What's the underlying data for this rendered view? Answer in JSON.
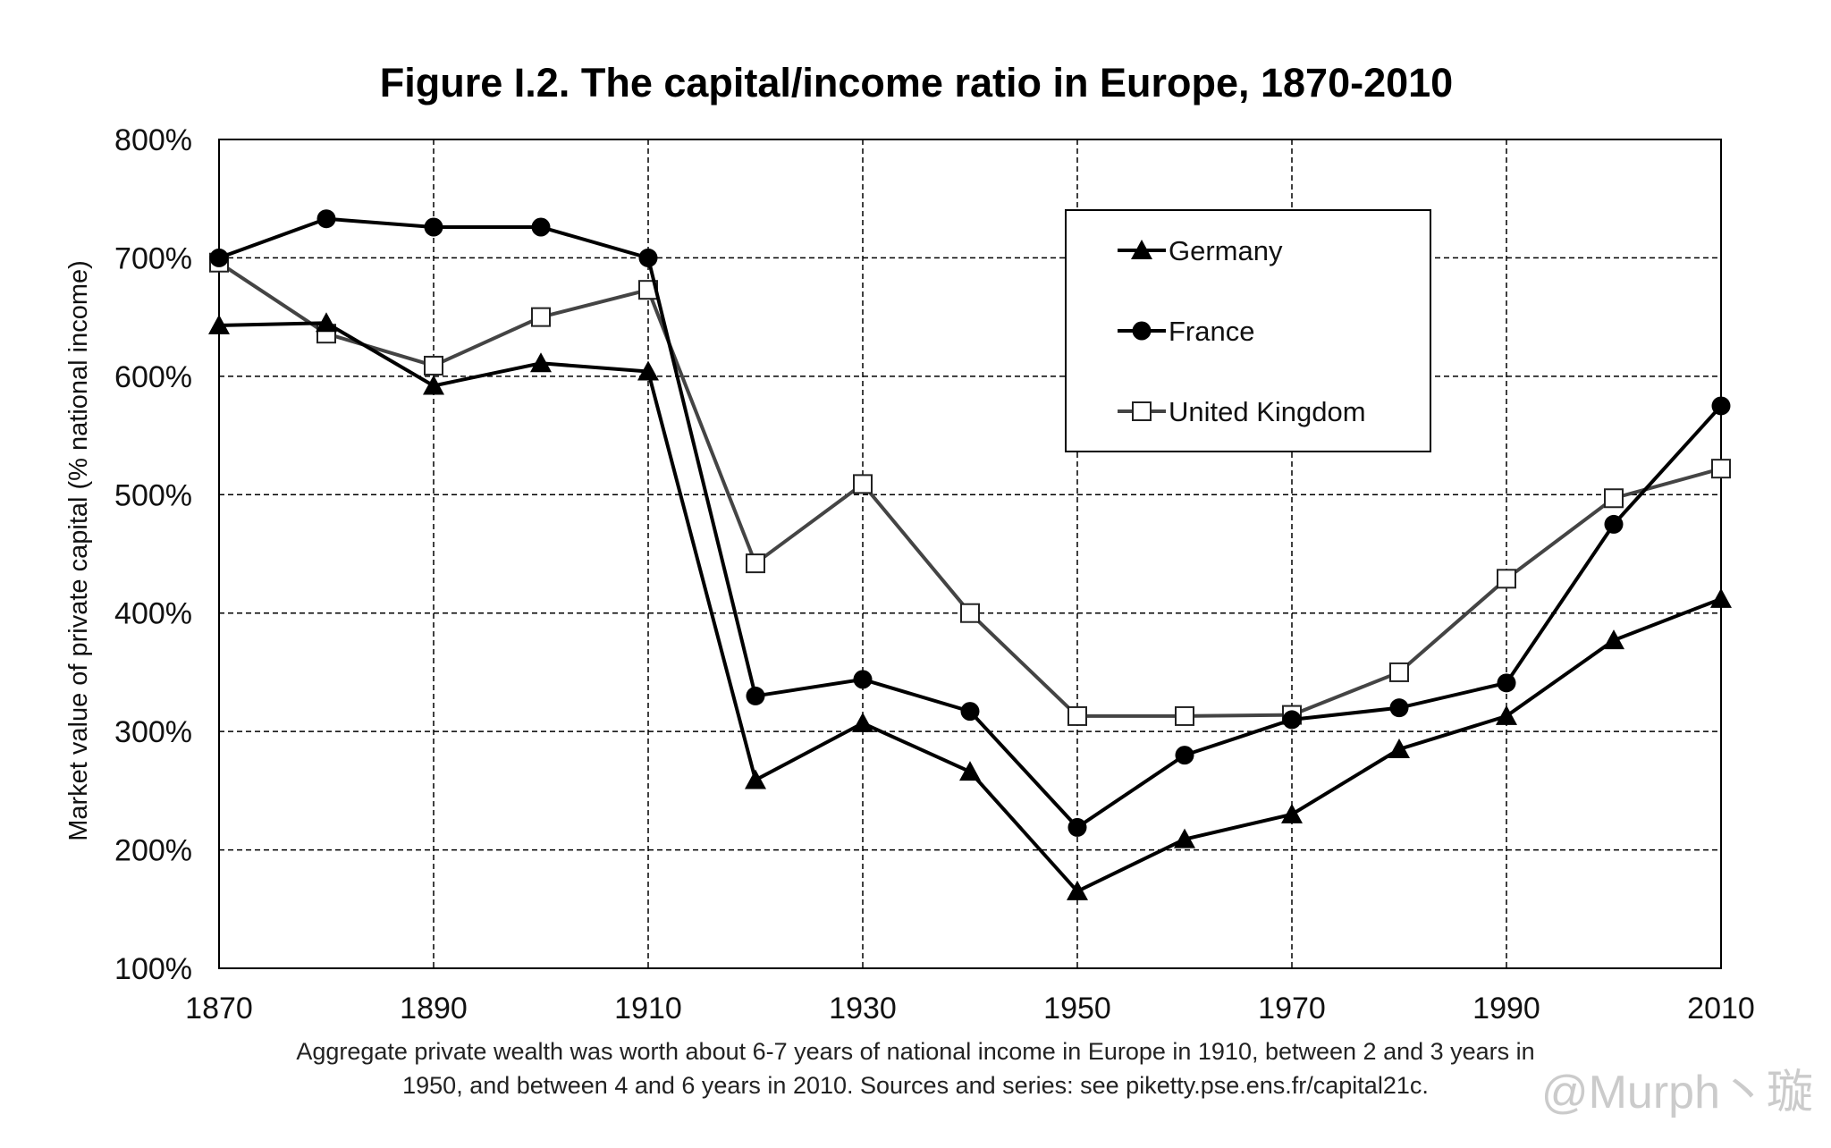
{
  "chart_data": {
    "type": "line",
    "title": "Figure I.2. The capital/income ratio in Europe, 1870-2010",
    "xlabel": "",
    "ylabel": "Market value of private capital (% national income)",
    "x": [
      1870,
      1880,
      1890,
      1900,
      1910,
      1920,
      1930,
      1940,
      1950,
      1960,
      1970,
      1980,
      1990,
      2000,
      2010
    ],
    "xticks": [
      1870,
      1890,
      1910,
      1930,
      1950,
      1970,
      1990,
      2010
    ],
    "xtick_labels": [
      "1870",
      "1890",
      "1910",
      "1930",
      "1950",
      "1970",
      "1990",
      "2010"
    ],
    "xlim": [
      1870,
      2010
    ],
    "ylim": [
      100,
      800
    ],
    "yticks": [
      100,
      200,
      300,
      400,
      500,
      600,
      700,
      800
    ],
    "ytick_labels": [
      "100%",
      "200%",
      "300%",
      "400%",
      "500%",
      "600%",
      "700%",
      "800%"
    ],
    "grid": true,
    "legend_position": "top-right",
    "series": [
      {
        "name": "Germany",
        "marker": "triangle",
        "color": "#000000",
        "values": [
          643,
          645,
          592,
          611,
          604,
          259,
          307,
          266,
          165,
          209,
          230,
          285,
          313,
          377,
          412
        ]
      },
      {
        "name": "France",
        "marker": "circle",
        "color": "#000000",
        "values": [
          700,
          733,
          726,
          726,
          700,
          330,
          344,
          317,
          219,
          280,
          310,
          320,
          341,
          475,
          575
        ]
      },
      {
        "name": "United Kingdom",
        "marker": "square-open",
        "color": "#444444",
        "values": [
          696,
          636,
          609,
          650,
          673,
          442,
          509,
          400,
          313,
          313,
          314,
          350,
          429,
          497,
          522
        ]
      }
    ]
  },
  "caption": {
    "line1": "Aggregate private wealth was worth about 6-7 years of national income in Europe in 1910, between 2 and 3 years in",
    "line2": "1950, and between 4 and 6 years in 2010. Sources and series: see piketty.pse.ens.fr/capital21c."
  },
  "watermark": "@Murph丶璇"
}
